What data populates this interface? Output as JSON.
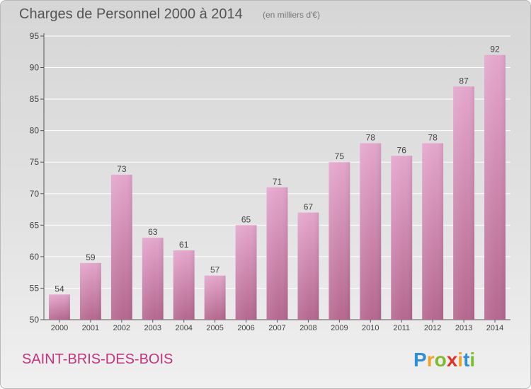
{
  "header": {
    "title": "Charges de Personnel 2000 à 2014",
    "subtitle": "(en milliers d'€)"
  },
  "footer": {
    "place_name": "SAINT-BRIS-DES-BOIS",
    "logo_text": "Proxiti"
  },
  "colors": {
    "bar_top": "#e4a6cc",
    "bar_bottom": "#b5678f",
    "place_name": "#c0357d"
  },
  "chart_data": {
    "type": "bar",
    "title": "Charges de Personnel 2000 à 2014",
    "subtitle": "(en milliers d'€)",
    "categories": [
      "2000",
      "2001",
      "2002",
      "2003",
      "2004",
      "2005",
      "2006",
      "2007",
      "2008",
      "2009",
      "2010",
      "2011",
      "2012",
      "2013",
      "2014"
    ],
    "values": [
      54,
      59,
      73,
      63,
      61,
      57,
      65,
      71,
      67,
      75,
      78,
      76,
      78,
      87,
      92
    ],
    "ylim": [
      50,
      95
    ],
    "yticks": [
      50,
      55,
      60,
      65,
      70,
      75,
      80,
      85,
      90,
      95
    ],
    "grid": true,
    "data_labels": true
  }
}
